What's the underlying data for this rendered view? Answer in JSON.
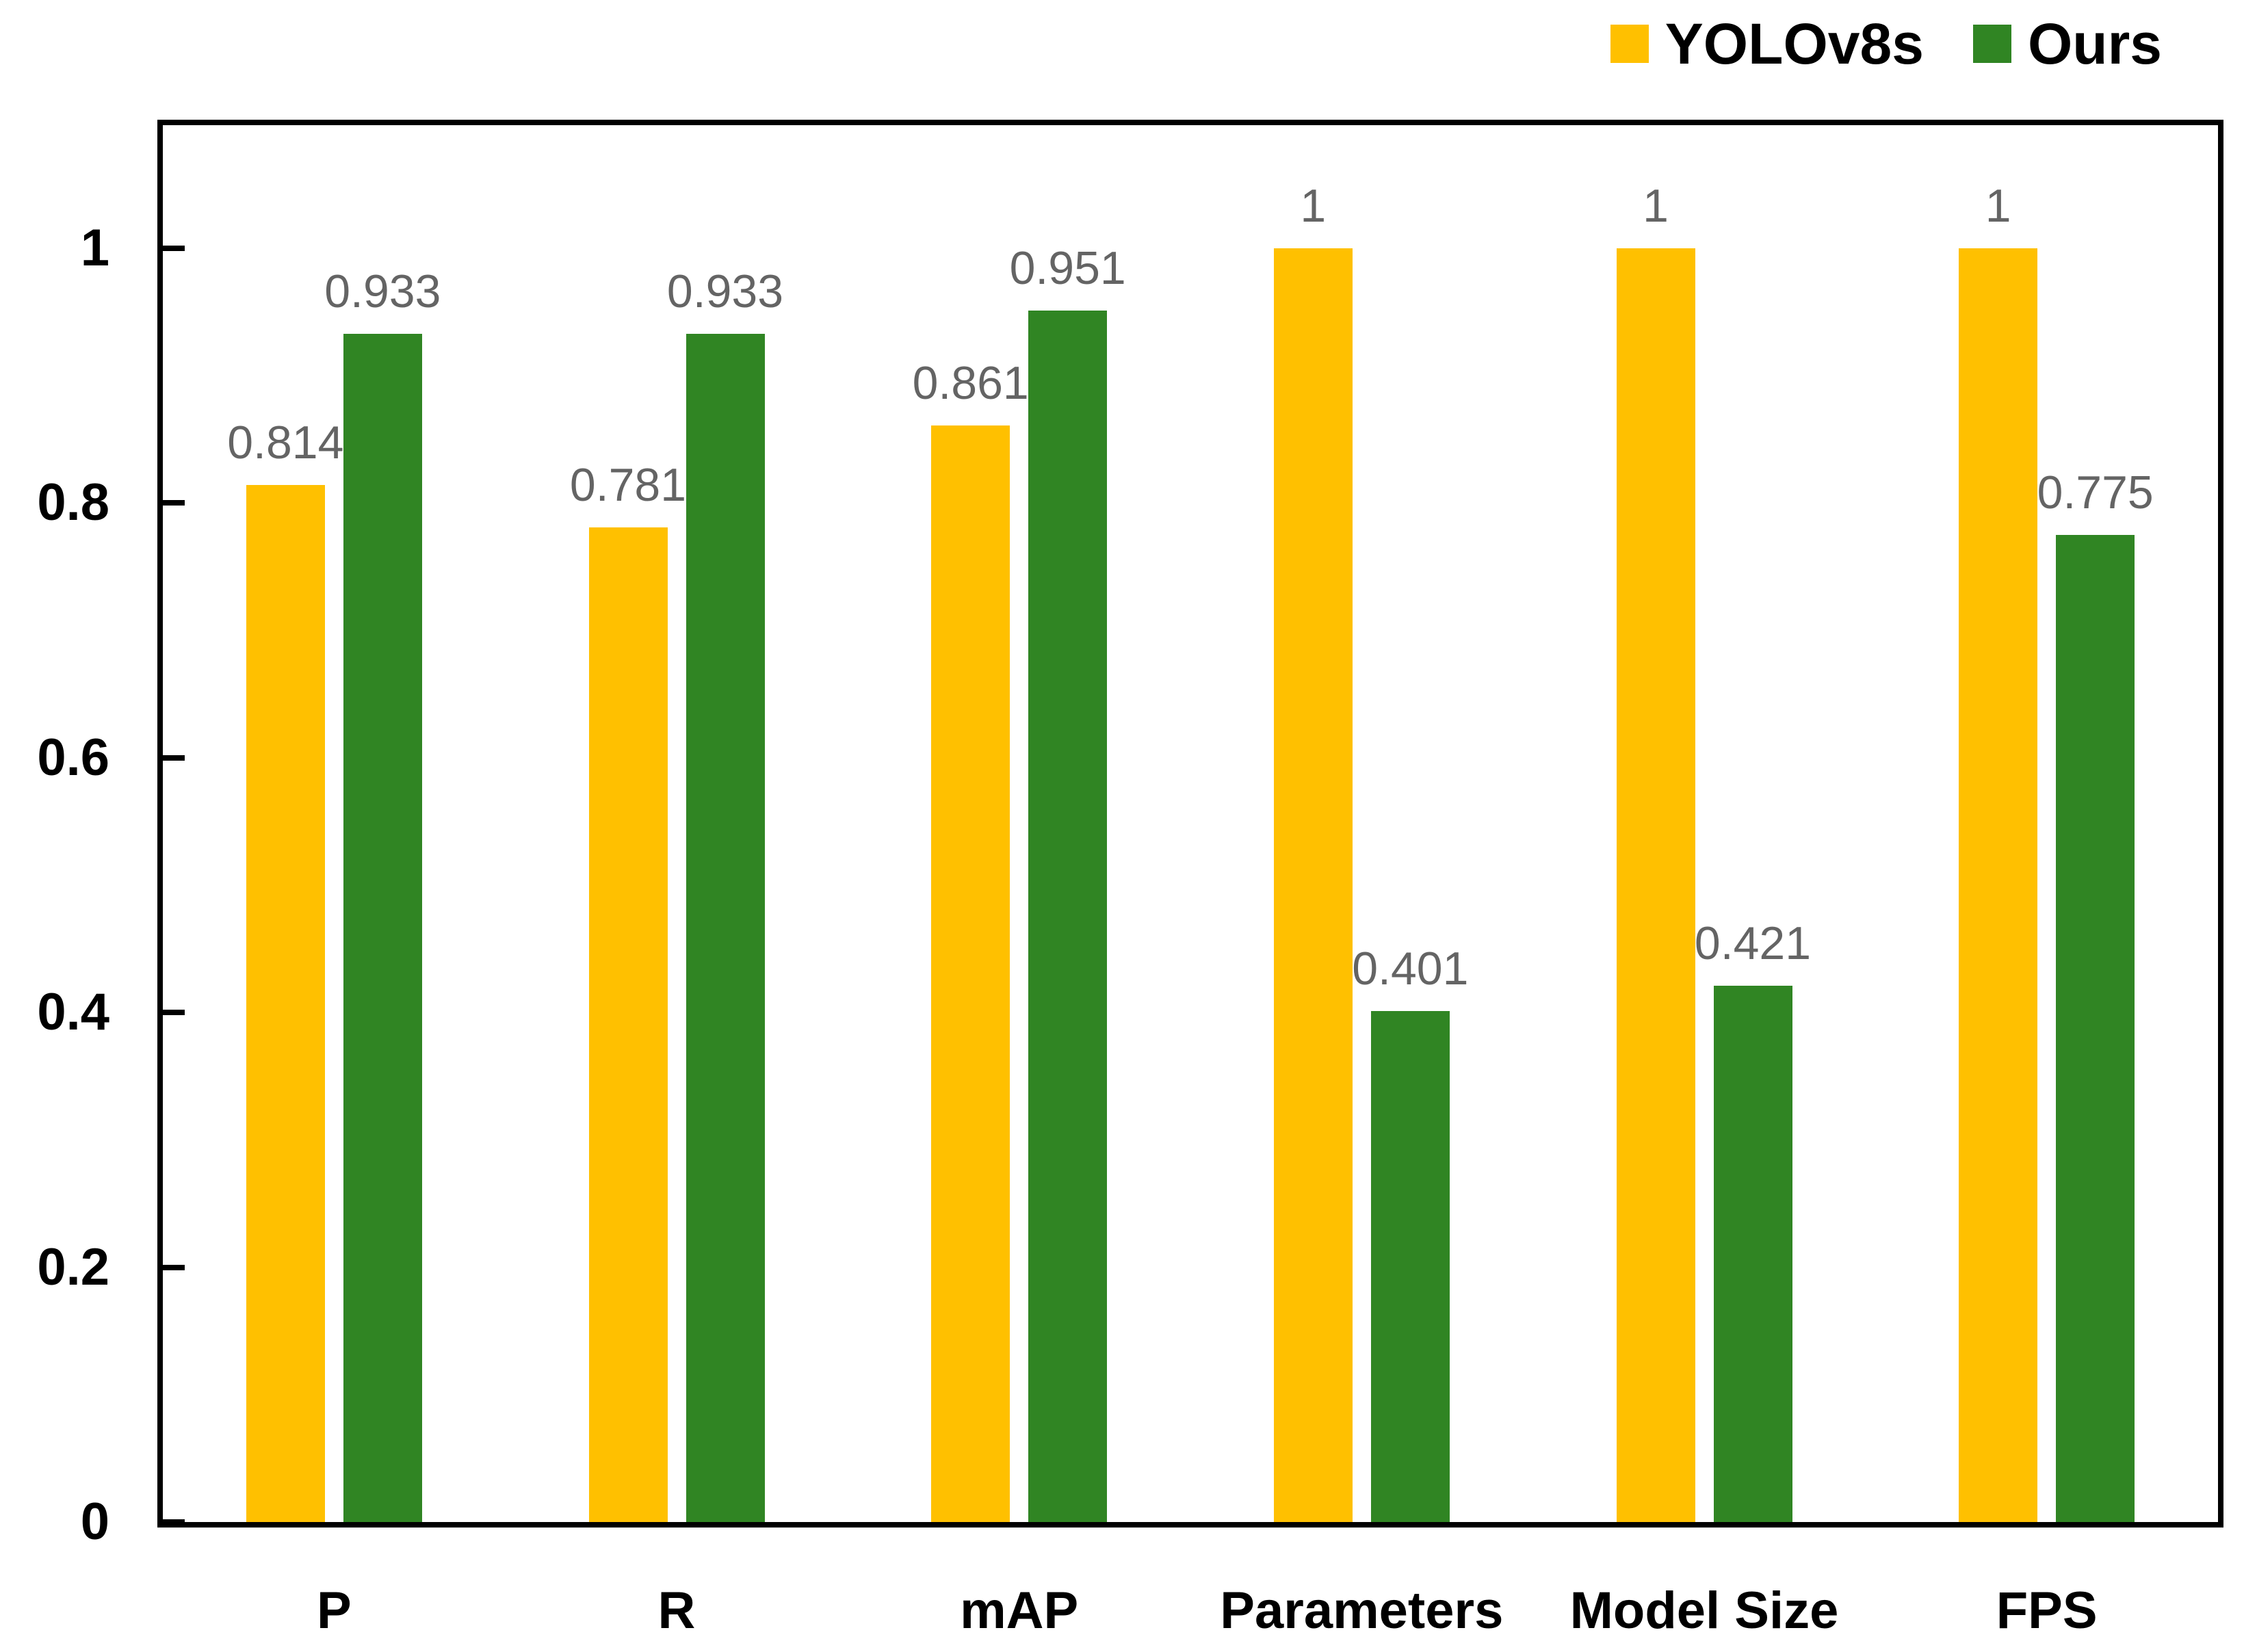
{
  "chart_data": {
    "type": "bar",
    "title": "",
    "categories": [
      "P",
      "R",
      "mAP",
      "Parameters",
      "Model Size",
      "FPS"
    ],
    "series": [
      {
        "name": "YOLOv8s",
        "color": "#FFC000",
        "values": [
          0.814,
          0.781,
          0.861,
          1,
          1,
          1
        ]
      },
      {
        "name": "Ours",
        "color": "#308523",
        "values": [
          0.933,
          0.933,
          0.951,
          0.401,
          0.421,
          0.775
        ]
      }
    ],
    "y_axis": {
      "ticks": [
        1,
        0.8,
        0.6,
        0.4,
        0.2,
        0
      ],
      "tick_labels": [
        "1",
        "0.8",
        "0.6",
        "0.4",
        "0.2",
        "0"
      ],
      "range": [
        0,
        1.1
      ],
      "grid": false
    },
    "xlabel": "",
    "ylabel": "",
    "legend_position": "top-right",
    "data_label_color": "#646464",
    "axis_color": "#000000"
  },
  "legend": {
    "items": [
      {
        "label": "YOLOv8s",
        "color": "#FFC000"
      },
      {
        "label": "Ours",
        "color": "#308523"
      }
    ]
  }
}
